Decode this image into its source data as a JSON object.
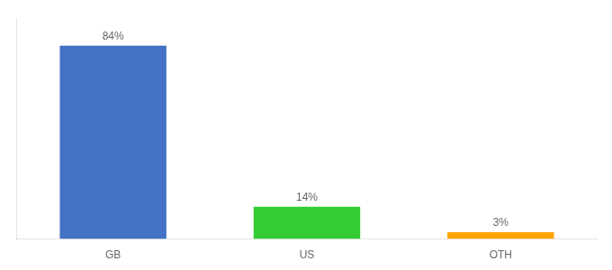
{
  "chart_data": {
    "type": "bar",
    "categories": [
      "GB",
      "US",
      "OTH"
    ],
    "values": [
      84,
      14,
      3
    ],
    "value_labels": [
      "84%",
      "14%",
      "3%"
    ],
    "colors": [
      "#4472C4",
      "#33CC33",
      "#FFA500"
    ],
    "ylim": [
      0,
      96
    ],
    "data_labels": true,
    "tick_labels": "x",
    "grid": false
  }
}
